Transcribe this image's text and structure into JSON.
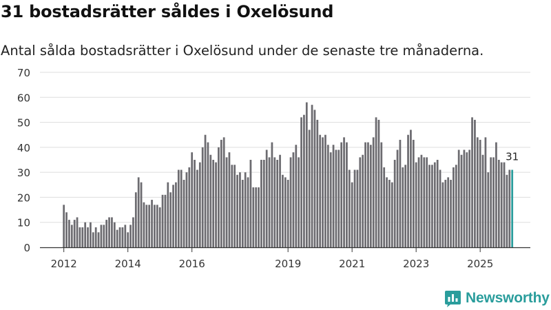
{
  "header": {
    "title": "31 bostadsrätter såldes i Oxelösund",
    "subtitle": "Antal sålda bostadsrätter i Oxelösund under de senaste tre månaderna."
  },
  "brand": {
    "name": "Newsworthy",
    "color": "#2a9d9c"
  },
  "colors": {
    "bar": "#6c6b70",
    "highlight": "#2a9d9c",
    "grid": "#dddddd",
    "axis": "#333333"
  },
  "chart_data": {
    "type": "bar",
    "title": "31 bostadsrätter såldes i Oxelösund",
    "subtitle": "Antal sålda bostadsrätter i Oxelösund under de senaste tre månaderna.",
    "xlabel": "",
    "ylabel": "",
    "ylim": [
      0,
      70
    ],
    "yticks": [
      0,
      10,
      20,
      30,
      40,
      50,
      60,
      70
    ],
    "xtick_labels": [
      {
        "label": "2012",
        "index": 0
      },
      {
        "label": "2014",
        "index": 24
      },
      {
        "label": "2016",
        "index": 48
      },
      {
        "label": "2019",
        "index": 84
      },
      {
        "label": "2021",
        "index": 108
      },
      {
        "label": "2023",
        "index": 132
      },
      {
        "label": "2025",
        "index": 156
      }
    ],
    "period": "monthly, 2012-01 to 2026-01",
    "highlight_index": 168,
    "highlight_label": "31",
    "values": [
      17,
      14,
      11,
      9,
      11,
      12,
      8,
      8,
      10,
      8,
      10,
      6,
      8,
      6,
      9,
      9,
      11,
      12,
      12,
      10,
      7,
      8,
      8,
      9,
      6,
      9,
      12,
      22,
      28,
      26,
      18,
      17,
      17,
      19,
      17,
      17,
      16,
      21,
      21,
      26,
      22,
      25,
      26,
      31,
      31,
      27,
      30,
      32,
      38,
      35,
      31,
      34,
      40,
      45,
      42,
      37,
      35,
      34,
      40,
      43,
      44,
      36,
      38,
      33,
      33,
      29,
      30,
      27,
      30,
      28,
      35,
      24,
      24,
      24,
      35,
      35,
      39,
      36,
      42,
      36,
      35,
      37,
      29,
      28,
      27,
      36,
      38,
      41,
      36,
      52,
      53,
      58,
      47,
      57,
      55,
      51,
      45,
      44,
      45,
      41,
      38,
      41,
      39,
      39,
      42,
      44,
      42,
      31,
      26,
      31,
      31,
      36,
      37,
      42,
      42,
      41,
      44,
      52,
      51,
      42,
      32,
      28,
      27,
      26,
      35,
      39,
      43,
      32,
      33,
      45,
      47,
      43,
      34,
      36,
      37,
      36,
      36,
      33,
      33,
      34,
      35,
      31,
      26,
      27,
      28,
      27,
      32,
      33,
      39,
      37,
      39,
      38,
      39,
      52,
      51,
      44,
      43,
      37,
      44,
      30,
      36,
      36,
      42,
      35,
      34,
      34,
      29,
      31,
      31
    ]
  }
}
